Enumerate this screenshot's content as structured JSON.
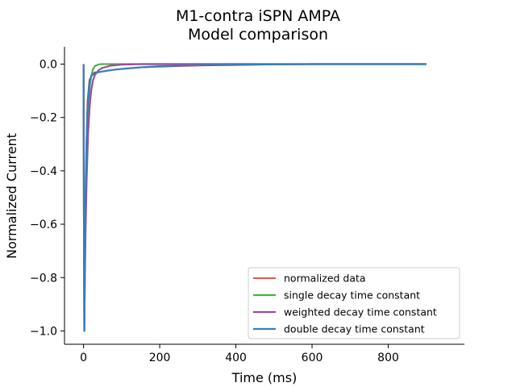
{
  "chart_data": {
    "type": "line",
    "title": "M1-contra    iSPN    AMPA",
    "subtitle": "Model comparison",
    "xlabel": "Time (ms)",
    "ylabel": "Normalized Current",
    "xlim": [
      -50,
      1000
    ],
    "ylim": [
      -1.05,
      0.065
    ],
    "x_ticks": [
      0,
      200,
      400,
      600,
      800
    ],
    "x_tick_labels": [
      "0",
      "200",
      "400",
      "600",
      "800"
    ],
    "y_ticks": [
      0.0,
      -0.2,
      -0.4,
      -0.6,
      -0.8,
      -1.0
    ],
    "y_tick_labels": [
      "0.0",
      "−0.2",
      "−0.4",
      "−0.6",
      "−0.8",
      "−1.0"
    ],
    "grid": false,
    "legend_position": "lower-right",
    "series": [
      {
        "name": "normalized data",
        "color": "#e41a1c",
        "x": [
          0,
          1,
          2,
          3,
          4,
          5,
          7,
          10,
          15,
          20,
          25,
          30,
          40,
          50,
          60,
          80,
          100,
          150,
          200,
          300,
          400,
          500,
          600,
          700,
          800,
          900
        ],
        "y": [
          0.0,
          -0.4,
          -0.95,
          -1.0,
          -0.78,
          -0.55,
          -0.3,
          -0.14,
          -0.06,
          -0.045,
          -0.035,
          -0.03,
          -0.03,
          -0.028,
          -0.026,
          -0.022,
          -0.018,
          -0.013,
          -0.01,
          -0.006,
          -0.004,
          -0.002,
          -0.001,
          0.0,
          0.0,
          0.0
        ]
      },
      {
        "name": "single decay time constant",
        "color": "#4daf4a",
        "x": [
          0,
          1,
          2,
          3,
          5,
          8,
          12,
          16,
          20,
          25,
          30,
          40,
          50,
          900
        ],
        "y": [
          0.0,
          -0.6,
          -1.0,
          -0.84,
          -0.6,
          -0.36,
          -0.18,
          -0.09,
          -0.045,
          -0.018,
          -0.007,
          -0.001,
          0.0,
          0.0
        ]
      },
      {
        "name": "weighted decay time constant",
        "color": "#984ea3",
        "x": [
          0,
          1,
          2,
          3,
          5,
          8,
          12,
          16,
          20,
          25,
          30,
          40,
          50,
          70,
          100,
          150,
          200,
          900
        ],
        "y": [
          0.0,
          -0.6,
          -1.0,
          -0.86,
          -0.65,
          -0.44,
          -0.26,
          -0.16,
          -0.1,
          -0.06,
          -0.04,
          -0.022,
          -0.014,
          -0.006,
          -0.002,
          0.0,
          0.0,
          0.0
        ]
      },
      {
        "name": "double decay time constant",
        "color": "#377eb8",
        "x": [
          0,
          1,
          2,
          3,
          5,
          7,
          10,
          15,
          20,
          30,
          40,
          60,
          80,
          100,
          150,
          200,
          300,
          400,
          600,
          900
        ],
        "y": [
          0.0,
          -0.6,
          -1.0,
          -0.8,
          -0.52,
          -0.34,
          -0.18,
          -0.07,
          -0.045,
          -0.034,
          -0.03,
          -0.025,
          -0.021,
          -0.018,
          -0.012,
          -0.008,
          -0.004,
          -0.002,
          0.0,
          0.0
        ]
      }
    ]
  }
}
